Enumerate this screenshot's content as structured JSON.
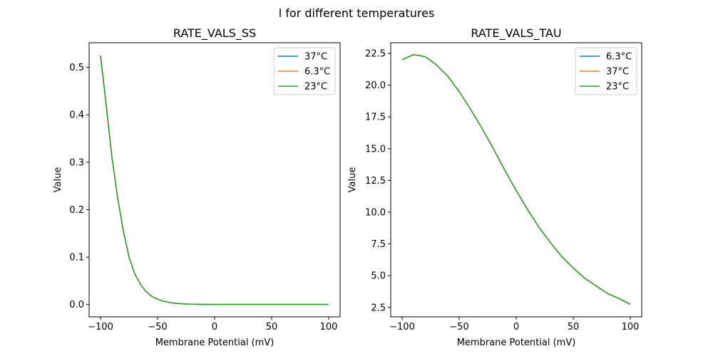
{
  "suptitle": "l for different temperatures",
  "chart_data": [
    {
      "type": "line",
      "title": "RATE_VALS_SS",
      "xlabel": "Membrane Potential (mV)",
      "ylabel": "Value",
      "xlim": [
        -110,
        110
      ],
      "ylim": [
        -0.026,
        0.552
      ],
      "xticks": [
        -100,
        -50,
        0,
        50,
        100
      ],
      "xtick_labels": [
        "−100",
        "−50",
        "0",
        "50",
        "100"
      ],
      "yticks": [
        0.0,
        0.1,
        0.2,
        0.3,
        0.4,
        0.5
      ],
      "ytick_labels": [
        "0.0",
        "0.1",
        "0.2",
        "0.3",
        "0.4",
        "0.5"
      ],
      "legend_position": "top-right",
      "grid": false,
      "x": [
        -100,
        -95,
        -90,
        -85,
        -80,
        -75,
        -70,
        -65,
        -60,
        -55,
        -50,
        -45,
        -40,
        -35,
        -30,
        -25,
        -20,
        -10,
        0,
        10,
        20,
        30,
        40,
        50,
        60,
        70,
        80,
        90,
        100
      ],
      "series": [
        {
          "name": "37°C",
          "color": "#1f77b4",
          "values": [
            0.525,
            0.42,
            0.31,
            0.225,
            0.155,
            0.1,
            0.065,
            0.042,
            0.027,
            0.017,
            0.011,
            0.007,
            0.0045,
            0.0028,
            0.0017,
            0.001,
            0.0006,
            0.0002,
            0.0001,
            0,
            0,
            0,
            0,
            0,
            0,
            0,
            0,
            0,
            0
          ]
        },
        {
          "name": "6.3°C",
          "color": "#ff7f0e",
          "values": [
            0.525,
            0.42,
            0.31,
            0.225,
            0.155,
            0.1,
            0.065,
            0.042,
            0.027,
            0.017,
            0.011,
            0.007,
            0.0045,
            0.0028,
            0.0017,
            0.001,
            0.0006,
            0.0002,
            0.0001,
            0,
            0,
            0,
            0,
            0,
            0,
            0,
            0,
            0,
            0
          ]
        },
        {
          "name": "23°C",
          "color": "#2ca02c",
          "values": [
            0.525,
            0.42,
            0.31,
            0.225,
            0.155,
            0.1,
            0.065,
            0.042,
            0.027,
            0.017,
            0.011,
            0.007,
            0.0045,
            0.0028,
            0.0017,
            0.001,
            0.0006,
            0.0002,
            0.0001,
            0,
            0,
            0,
            0,
            0,
            0,
            0,
            0,
            0,
            0
          ]
        }
      ]
    },
    {
      "type": "line",
      "title": "RATE_VALS_TAU",
      "xlabel": "Membrane Potential (mV)",
      "ylabel": "Value",
      "xlim": [
        -110,
        110
      ],
      "ylim": [
        1.76,
        23.34
      ],
      "xticks": [
        -100,
        -50,
        0,
        50,
        100
      ],
      "xtick_labels": [
        "−100",
        "−50",
        "0",
        "50",
        "100"
      ],
      "yticks": [
        2.5,
        5.0,
        7.5,
        10.0,
        12.5,
        15.0,
        17.5,
        20.0,
        22.5
      ],
      "ytick_labels": [
        "2.5",
        "5.0",
        "7.5",
        "10.0",
        "12.5",
        "15.0",
        "17.5",
        "20.0",
        "22.5"
      ],
      "legend_position": "top-right",
      "grid": false,
      "x": [
        -100,
        -90,
        -80,
        -70,
        -60,
        -50,
        -40,
        -30,
        -20,
        -10,
        0,
        10,
        20,
        30,
        40,
        50,
        60,
        70,
        80,
        90,
        100
      ],
      "series": [
        {
          "name": "6.3°C",
          "color": "#1f77b4",
          "values": [
            22.0,
            22.4,
            22.25,
            21.6,
            20.7,
            19.5,
            18.1,
            16.6,
            15.0,
            13.3,
            11.7,
            10.2,
            8.8,
            7.6,
            6.5,
            5.6,
            4.8,
            4.2,
            3.6,
            3.2,
            2.75
          ]
        },
        {
          "name": "37°C",
          "color": "#ff7f0e",
          "values": [
            22.0,
            22.4,
            22.25,
            21.6,
            20.7,
            19.5,
            18.1,
            16.6,
            15.0,
            13.3,
            11.7,
            10.2,
            8.8,
            7.6,
            6.5,
            5.6,
            4.8,
            4.2,
            3.6,
            3.2,
            2.75
          ]
        },
        {
          "name": "23°C",
          "color": "#2ca02c",
          "values": [
            22.0,
            22.4,
            22.25,
            21.6,
            20.7,
            19.5,
            18.1,
            16.6,
            15.0,
            13.3,
            11.7,
            10.2,
            8.8,
            7.6,
            6.5,
            5.6,
            4.8,
            4.2,
            3.6,
            3.2,
            2.75
          ]
        }
      ]
    }
  ]
}
